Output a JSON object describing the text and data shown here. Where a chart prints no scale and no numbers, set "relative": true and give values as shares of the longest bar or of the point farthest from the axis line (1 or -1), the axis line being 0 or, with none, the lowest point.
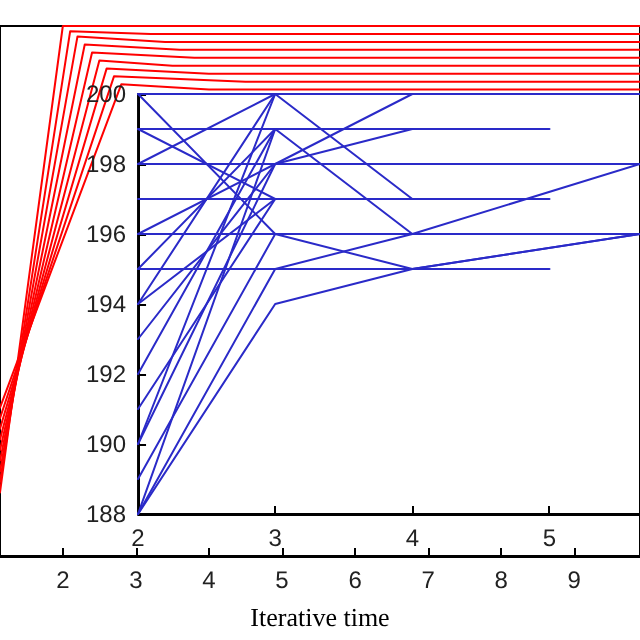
{
  "chart_data": [
    {
      "type": "line",
      "xlabel": "Iterative time",
      "relative": true,
      "xlim": [
        1.14,
        9.9
      ],
      "xticks": [
        2,
        3,
        4,
        5,
        6,
        7,
        8,
        9
      ],
      "grid": false,
      "marker": "none",
      "line_style": "solid",
      "series": [
        {
          "color": "#ff0000",
          "x": [
            1.14,
            2.0,
            3.0,
            9.9
          ],
          "values": [
            0.12,
            1.0,
            1.0,
            1.0
          ]
        },
        {
          "color": "#ff0000",
          "x": [
            1.14,
            2.1,
            3.2,
            9.9
          ],
          "values": [
            0.14,
            0.99,
            0.985,
            0.985
          ]
        },
        {
          "color": "#ff0000",
          "x": [
            1.14,
            2.2,
            3.4,
            9.9
          ],
          "values": [
            0.16,
            0.98,
            0.97,
            0.97
          ]
        },
        {
          "color": "#ff0000",
          "x": [
            1.14,
            2.3,
            3.6,
            9.9
          ],
          "values": [
            0.18,
            0.965,
            0.955,
            0.955
          ]
        },
        {
          "color": "#ff0000",
          "x": [
            1.14,
            2.4,
            3.8,
            9.9
          ],
          "values": [
            0.2,
            0.95,
            0.94,
            0.94
          ]
        },
        {
          "color": "#ff0000",
          "x": [
            1.14,
            2.5,
            3.5,
            9.9
          ],
          "values": [
            0.22,
            0.935,
            0.925,
            0.925
          ]
        },
        {
          "color": "#ff0000",
          "x": [
            1.14,
            2.6,
            4.0,
            9.9
          ],
          "values": [
            0.24,
            0.92,
            0.91,
            0.91
          ]
        },
        {
          "color": "#ff0000",
          "x": [
            1.14,
            2.7,
            4.5,
            9.9
          ],
          "values": [
            0.26,
            0.905,
            0.895,
            0.895
          ]
        },
        {
          "color": "#ff0000",
          "x": [
            1.14,
            2.8,
            4.0,
            9.9
          ],
          "values": [
            0.28,
            0.89,
            0.88,
            0.88
          ]
        }
      ]
    },
    {
      "type": "line",
      "xlim": [
        2,
        5.66
      ],
      "xticks": [
        2,
        3,
        4,
        5
      ],
      "ylim": [
        188,
        200
      ],
      "yticks": [
        188,
        190,
        192,
        194,
        196,
        198,
        200
      ],
      "grid": false,
      "marker": "none",
      "line_style": "solid",
      "series": [
        {
          "color": "#2a2ac8",
          "x": [
            2,
            3,
            4,
            5.66
          ],
          "values": [
            200,
            200,
            200,
            200
          ]
        },
        {
          "color": "#2a2ac8",
          "x": [
            2,
            3,
            4,
            5
          ],
          "values": [
            199,
            199,
            199,
            199
          ]
        },
        {
          "color": "#2a2ac8",
          "x": [
            2,
            3,
            4,
            5.66
          ],
          "values": [
            198,
            198,
            198,
            198
          ]
        },
        {
          "color": "#2a2ac8",
          "x": [
            2,
            3,
            4,
            5
          ],
          "values": [
            197,
            197,
            197,
            197
          ]
        },
        {
          "color": "#2a2ac8",
          "x": [
            2,
            3,
            4,
            5.66
          ],
          "values": [
            196,
            196,
            196,
            196
          ]
        },
        {
          "color": "#2a2ac8",
          "x": [
            2,
            3,
            4,
            5
          ],
          "values": [
            195,
            195,
            195,
            195
          ]
        },
        {
          "color": "#2a2ac8",
          "x": [
            2,
            3,
            4,
            5.66
          ],
          "values": [
            188,
            194,
            195,
            196
          ]
        },
        {
          "color": "#2a2ac8",
          "x": [
            2,
            3,
            4,
            5.66
          ],
          "values": [
            188,
            195,
            196,
            198
          ]
        },
        {
          "color": "#2a2ac8",
          "x": [
            2,
            3
          ],
          "values": [
            188,
            199
          ]
        },
        {
          "color": "#2a2ac8",
          "x": [
            2,
            3
          ],
          "values": [
            189,
            196
          ]
        },
        {
          "color": "#2a2ac8",
          "x": [
            2,
            3
          ],
          "values": [
            190,
            198
          ]
        },
        {
          "color": "#2a2ac8",
          "x": [
            2,
            3
          ],
          "values": [
            190,
            200
          ]
        },
        {
          "color": "#2a2ac8",
          "x": [
            2,
            3
          ],
          "values": [
            191,
            197
          ]
        },
        {
          "color": "#2a2ac8",
          "x": [
            2,
            3
          ],
          "values": [
            192,
            199
          ]
        },
        {
          "color": "#2a2ac8",
          "x": [
            2,
            3
          ],
          "values": [
            193,
            198
          ]
        },
        {
          "color": "#2a2ac8",
          "x": [
            2,
            3
          ],
          "values": [
            194,
            200
          ]
        },
        {
          "color": "#2a2ac8",
          "x": [
            2,
            3
          ],
          "values": [
            194,
            197
          ]
        },
        {
          "color": "#2a2ac8",
          "x": [
            2,
            3
          ],
          "values": [
            200,
            196
          ]
        },
        {
          "color": "#2a2ac8",
          "x": [
            2,
            3
          ],
          "values": [
            199,
            197
          ]
        },
        {
          "color": "#2a2ac8",
          "x": [
            2,
            3,
            4
          ],
          "values": [
            198,
            200,
            197
          ]
        },
        {
          "color": "#2a2ac8",
          "x": [
            2,
            3,
            4
          ],
          "values": [
            195,
            199,
            196
          ]
        },
        {
          "color": "#2a2ac8",
          "x": [
            2,
            3,
            4
          ],
          "values": [
            196,
            198,
            200
          ]
        },
        {
          "color": "#2a2ac8",
          "x": [
            3,
            4
          ],
          "values": [
            198,
            199
          ]
        },
        {
          "color": "#2a2ac8",
          "x": [
            3,
            4,
            5.66
          ],
          "values": [
            196,
            195,
            196
          ]
        }
      ]
    }
  ]
}
